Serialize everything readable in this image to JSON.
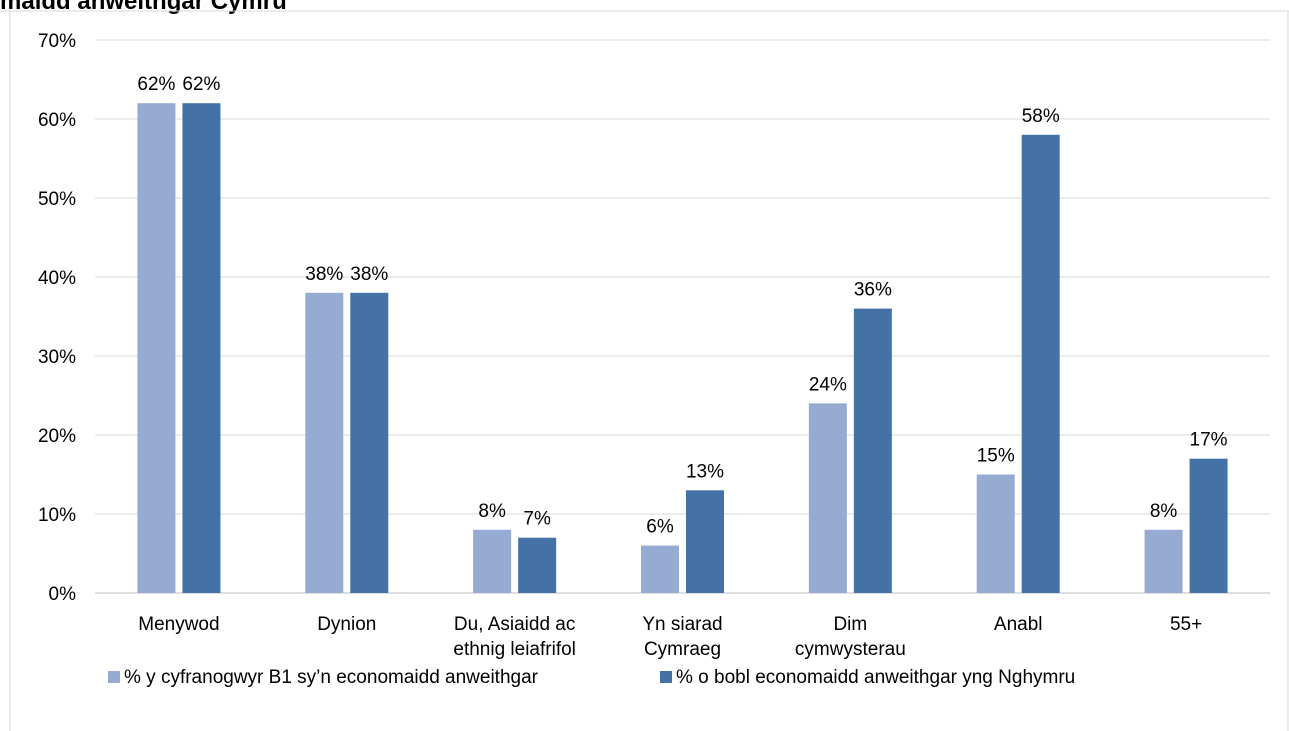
{
  "chart_data": {
    "type": "bar",
    "title": "maidd anweithgar Cymru",
    "categories": [
      [
        "Menywod"
      ],
      [
        "Dynion"
      ],
      [
        "Du, Asiaidd ac",
        "ethnig leiafrifol"
      ],
      [
        "Yn siarad",
        "Cymraeg"
      ],
      [
        "Dim",
        "cymwysterau"
      ],
      [
        "Anabl"
      ],
      [
        "55+"
      ]
    ],
    "series": [
      {
        "name": "% y cyfranogwyr B1 sy’n economaidd anweithgar",
        "color": "#95abd2",
        "values": [
          62,
          38,
          8,
          6,
          24,
          15,
          8
        ],
        "labels": [
          "62%",
          "38%",
          "8%",
          "6%",
          "24%",
          "15%",
          "8%"
        ]
      },
      {
        "name": "% o bobl economaidd anweithgar yng Nghymru",
        "color": "#4472a6",
        "values": [
          62,
          38,
          7,
          13,
          36,
          58,
          17
        ],
        "labels": [
          "62%",
          "38%",
          "7%",
          "13%",
          "36%",
          "58%",
          "17%"
        ]
      }
    ],
    "y_ticks": [
      "0%",
      "10%",
      "20%",
      "30%",
      "40%",
      "50%",
      "60%",
      "70%"
    ],
    "ylim": [
      0,
      70
    ],
    "ylabel": "",
    "xlabel": "",
    "grid": true,
    "legend_position": "bottom"
  }
}
